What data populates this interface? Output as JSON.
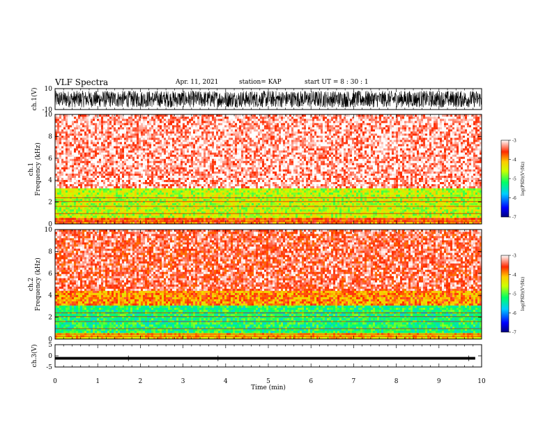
{
  "header": {
    "title": "VLF Spectra",
    "date": "Apr. 11, 2021",
    "station": "station= KAP",
    "start_ut": "start UT =  8 : 30 : 1"
  },
  "colors": {
    "background": "#ffffff",
    "axis": "#000000",
    "spectrogram_low": "#0000ff",
    "spectrogram_high": "#ff0000"
  },
  "chart_data": [
    {
      "type": "line",
      "panel": "ch1-waveform",
      "ylabel": "ch.1(V)",
      "ylim": [
        -10,
        10
      ],
      "yticks": [
        "10",
        "-10"
      ],
      "xlim": [
        0,
        10
      ],
      "description_series": "dense noise waveform filling roughly -8 to 8 V"
    },
    {
      "type": "heatmap",
      "panel": "ch1-spectrogram",
      "ylabel": "ch.1 Frequency (kHz)",
      "ylim": [
        0,
        10
      ],
      "yticks": [
        "0",
        "2",
        "4",
        "6",
        "8",
        "10"
      ],
      "xlim": [
        0,
        10
      ],
      "colorbar": {
        "label": "log(PSD)(V²/Hz)",
        "range": [
          -7,
          -3
        ],
        "ticks": [
          "-3",
          "-4",
          "-5",
          "-6",
          "-7"
        ]
      },
      "bands": [
        {
          "from": 0,
          "to": 0.5,
          "level": -3.8
        },
        {
          "from": 0.5,
          "to": 3.2,
          "level": -4.6
        },
        {
          "from": 3.2,
          "to": 10,
          "level": -3.2
        }
      ]
    },
    {
      "type": "heatmap",
      "panel": "ch2-spectrogram",
      "ylabel": "ch.2 Frequency (kHz)",
      "ylim": [
        0,
        10
      ],
      "yticks": [
        "0",
        "2",
        "4",
        "6",
        "8",
        "10"
      ],
      "xlim": [
        0,
        10
      ],
      "colorbar": {
        "label": "log(PSD)(V²/Hz)",
        "range": [
          -7,
          -3
        ],
        "ticks": [
          "-3",
          "-4",
          "-5",
          "-6",
          "-7"
        ]
      },
      "bands": [
        {
          "from": 0,
          "to": 0.5,
          "level": -4.2
        },
        {
          "from": 0.5,
          "to": 3.0,
          "level": -5.2
        },
        {
          "from": 3.0,
          "to": 4.5,
          "level": -3.9
        },
        {
          "from": 4.5,
          "to": 10,
          "level": -3.4
        }
      ]
    },
    {
      "type": "line",
      "panel": "ch3-waveform",
      "ylabel": "ch.3(V)",
      "ylim": [
        -5,
        5
      ],
      "yticks": [
        "5",
        "0",
        "-5"
      ],
      "xlim": [
        0,
        10
      ],
      "xlabel": "Time  (min)",
      "xticks": [
        "0",
        "1",
        "2",
        "3",
        "4",
        "5",
        "6",
        "7",
        "8",
        "9",
        "10"
      ],
      "description_series": "thick band near -1 V"
    }
  ]
}
